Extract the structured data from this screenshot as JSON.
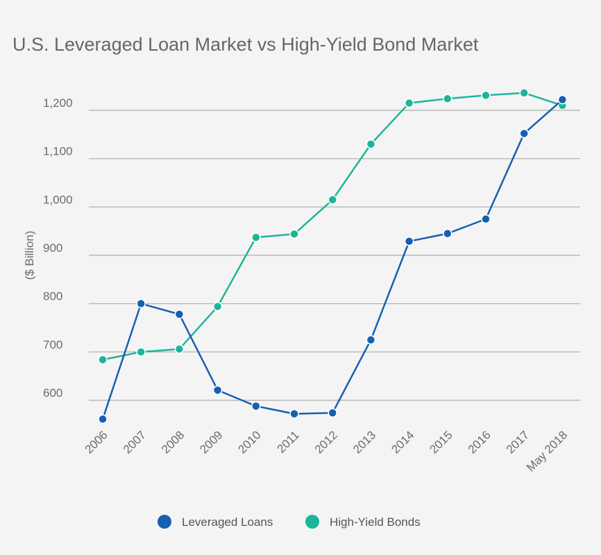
{
  "chart_data": {
    "type": "line",
    "title": "U.S. Leveraged Loan Market vs High-Yield Bond Market",
    "ylabel": "($ Billion)",
    "xlabel": "",
    "categories": [
      "2006",
      "2007",
      "2008",
      "2009",
      "2010",
      "2011",
      "2012",
      "2013",
      "2014",
      "2015",
      "2016",
      "2017",
      "May 2018"
    ],
    "ylim": [
      540,
      1250
    ],
    "yticks": [
      600,
      700,
      800,
      900,
      1000,
      1100,
      1200
    ],
    "ytick_labels": [
      "600",
      "700",
      "800",
      "900",
      "1,000",
      "1,100",
      "1,200"
    ],
    "grid": true,
    "legend_position": "bottom-center",
    "series": [
      {
        "name": "Leveraged Loans",
        "color": "#1560b0",
        "values": [
          561,
          800,
          778,
          621,
          588,
          572,
          574,
          725,
          929,
          945,
          975,
          1152,
          1222
        ]
      },
      {
        "name": "High-Yield Bonds",
        "color": "#1db59a",
        "values": [
          684,
          700,
          706,
          794,
          937,
          944,
          1015,
          1130,
          1215,
          1224,
          1231,
          1236,
          1210
        ]
      }
    ]
  }
}
